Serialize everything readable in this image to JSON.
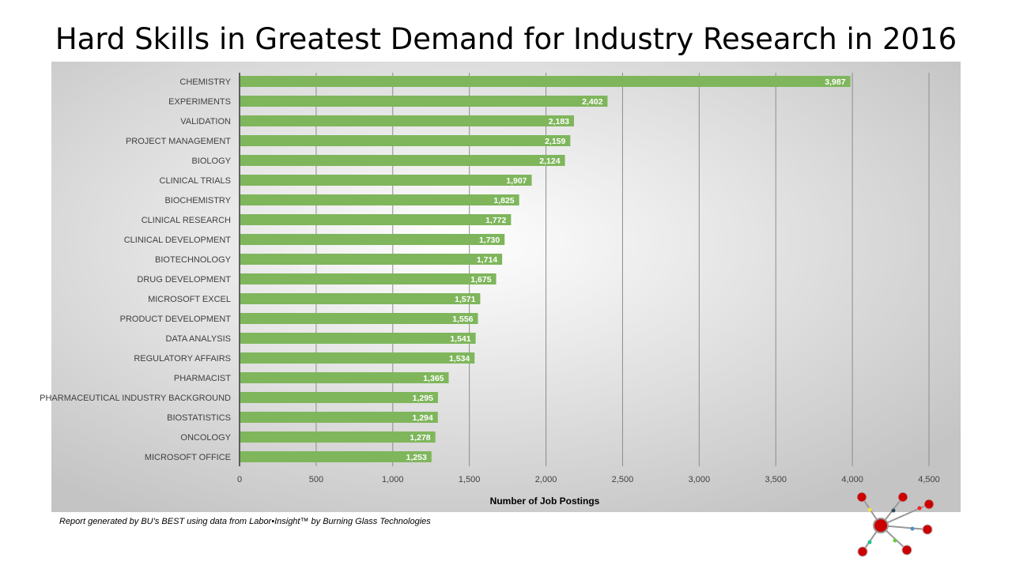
{
  "title": "Hard Skills in Greatest Demand for Industry Research in 2016",
  "footer": "Report generated by BU’s BEST using data from Labor•Insight™ by Burning Glass Technologies",
  "colors": {
    "bar": "#7fb65c",
    "grid": "#8c8c8c",
    "label_text": "#404040"
  },
  "chart_data": {
    "type": "bar",
    "orientation": "horizontal",
    "title": "Hard Skills in Greatest Demand for Industry Research in 2016",
    "xlabel": "Number of Job Postings",
    "ylabel": "",
    "xlim": [
      0,
      4500
    ],
    "xticks": [
      0,
      500,
      1000,
      1500,
      2000,
      2500,
      3000,
      3500,
      4000,
      4500
    ],
    "xtick_labels": [
      "0",
      "500",
      "1,000",
      "1,500",
      "2,000",
      "2,500",
      "3,000",
      "3,500",
      "4,000",
      "4,500"
    ],
    "grid": "vertical",
    "categories": [
      "CHEMISTRY",
      "EXPERIMENTS",
      "VALIDATION",
      "PROJECT MANAGEMENT",
      "BIOLOGY",
      "CLINICAL TRIALS",
      "BIOCHEMISTRY",
      "CLINICAL RESEARCH",
      "CLINICAL DEVELOPMENT",
      "BIOTECHNOLOGY",
      "DRUG DEVELOPMENT",
      "MICROSOFT EXCEL",
      "PRODUCT DEVELOPMENT",
      "DATA ANALYSIS",
      "REGULATORY AFFAIRS",
      "PHARMACIST",
      "PHARMACEUTICAL INDUSTRY BACKGROUND",
      "BIOSTATISTICS",
      "ONCOLOGY",
      "MICROSOFT OFFICE"
    ],
    "values": [
      3987,
      2402,
      2183,
      2159,
      2124,
      1907,
      1825,
      1772,
      1730,
      1714,
      1675,
      1571,
      1556,
      1541,
      1534,
      1365,
      1295,
      1294,
      1278,
      1253
    ],
    "data_labels": [
      "3,987",
      "2,402",
      "2,183",
      "2,159",
      "2,124",
      "1,907",
      "1,825",
      "1,772",
      "1,730",
      "1,714",
      "1,675",
      "1,571",
      "1,556",
      "1,541",
      "1,534",
      "1,365",
      "1,295",
      "1,294",
      "1,278",
      "1,253"
    ]
  }
}
